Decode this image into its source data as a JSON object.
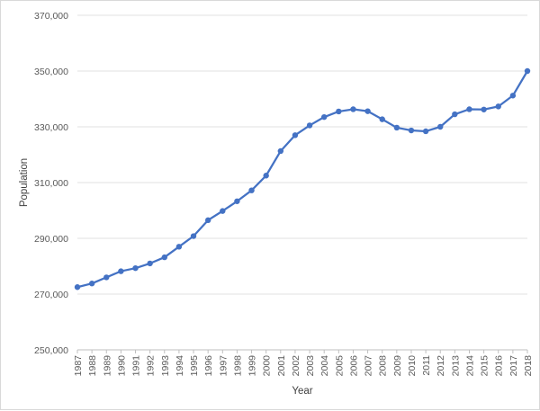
{
  "chart_data": {
    "type": "line",
    "title": "",
    "xlabel": "Year",
    "ylabel": "Population",
    "ylim": [
      250000,
      370000
    ],
    "y_ticks": [
      250000,
      270000,
      290000,
      310000,
      330000,
      350000,
      370000
    ],
    "y_tick_labels": [
      "250,000",
      "270,000",
      "290,000",
      "310,000",
      "330,000",
      "350,000",
      "370,000"
    ],
    "grid": "horizontal",
    "legend": "none",
    "series_color": "#4472C4",
    "x": [
      "1987",
      "1988",
      "1989",
      "1990",
      "1991",
      "1992",
      "1993",
      "1994",
      "1995",
      "1996",
      "1997",
      "1998",
      "1999",
      "2000",
      "2001",
      "2002",
      "2003",
      "2004",
      "2005",
      "2006",
      "2007",
      "2008",
      "2009",
      "2010",
      "2011",
      "2012",
      "2013",
      "2014",
      "2015",
      "2016",
      "2017",
      "2018"
    ],
    "series": [
      {
        "values": [
          272500,
          273800,
          276000,
          278200,
          279300,
          281000,
          283200,
          287000,
          290800,
          296500,
          299800,
          303300,
          307200,
          312500,
          321300,
          327000,
          330500,
          333500,
          335500,
          336300,
          335600,
          332700,
          329700,
          328700,
          328400,
          330000,
          334500,
          336300,
          336200,
          337300,
          341200,
          350000
        ]
      }
    ]
  }
}
